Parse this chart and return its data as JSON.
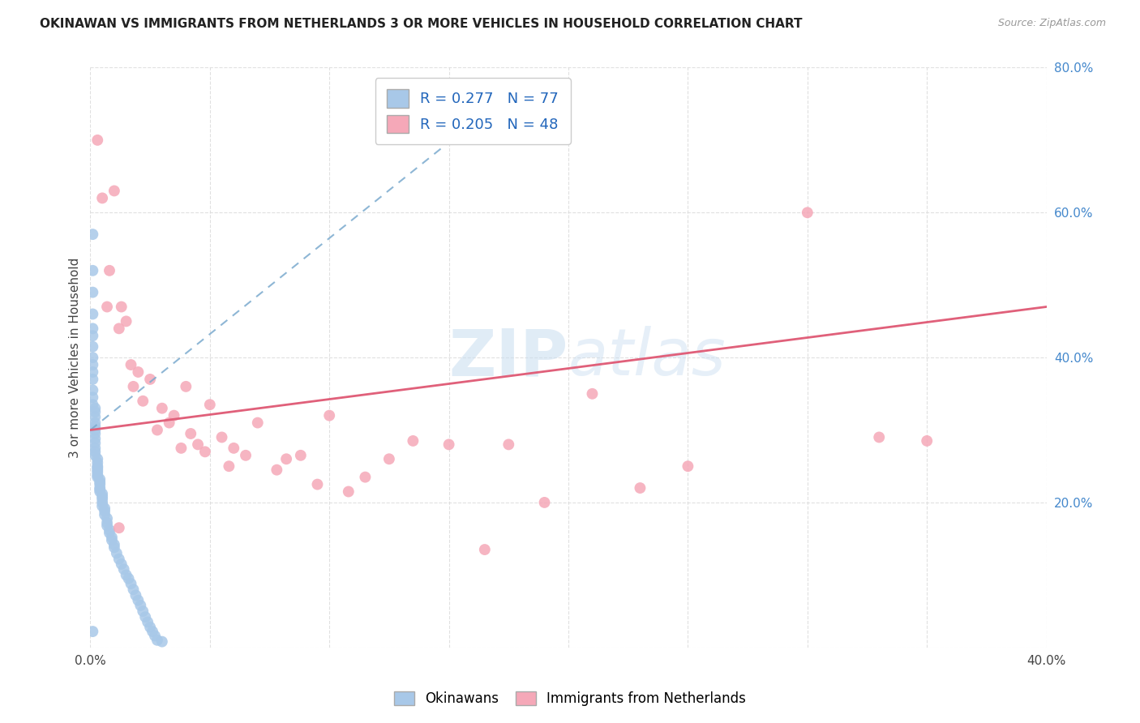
{
  "title": "OKINAWAN VS IMMIGRANTS FROM NETHERLANDS 3 OR MORE VEHICLES IN HOUSEHOLD CORRELATION CHART",
  "source": "Source: ZipAtlas.com",
  "ylabel": "3 or more Vehicles in Household",
  "xlim": [
    0.0,
    0.4
  ],
  "ylim": [
    0.0,
    0.8
  ],
  "legend_label1": "Okinawans",
  "legend_label2": "Immigrants from Netherlands",
  "r1": 0.277,
  "n1": 77,
  "r2": 0.205,
  "n2": 48,
  "color_blue": "#a8c8e8",
  "color_pink": "#f5a8b8",
  "line_color_blue": "#7aaace",
  "line_color_pink": "#e0607a",
  "watermark_zip": "ZIP",
  "watermark_atlas": "atlas",
  "blue_x": [
    0.001,
    0.001,
    0.001,
    0.001,
    0.001,
    0.001,
    0.001,
    0.001,
    0.001,
    0.001,
    0.001,
    0.001,
    0.001,
    0.001,
    0.002,
    0.002,
    0.002,
    0.002,
    0.002,
    0.002,
    0.002,
    0.002,
    0.002,
    0.002,
    0.002,
    0.002,
    0.003,
    0.003,
    0.003,
    0.003,
    0.003,
    0.003,
    0.003,
    0.003,
    0.004,
    0.004,
    0.004,
    0.004,
    0.004,
    0.004,
    0.005,
    0.005,
    0.005,
    0.005,
    0.005,
    0.006,
    0.006,
    0.006,
    0.007,
    0.007,
    0.007,
    0.008,
    0.008,
    0.009,
    0.009,
    0.01,
    0.01,
    0.011,
    0.012,
    0.013,
    0.014,
    0.015,
    0.016,
    0.017,
    0.018,
    0.019,
    0.02,
    0.021,
    0.022,
    0.023,
    0.024,
    0.025,
    0.026,
    0.027,
    0.028,
    0.03,
    0.001
  ],
  "blue_y": [
    0.57,
    0.52,
    0.49,
    0.46,
    0.44,
    0.43,
    0.415,
    0.4,
    0.39,
    0.38,
    0.37,
    0.355,
    0.345,
    0.335,
    0.33,
    0.325,
    0.318,
    0.31,
    0.305,
    0.3,
    0.295,
    0.288,
    0.282,
    0.275,
    0.27,
    0.265,
    0.26,
    0.255,
    0.25,
    0.248,
    0.245,
    0.242,
    0.238,
    0.235,
    0.232,
    0.228,
    0.225,
    0.22,
    0.218,
    0.215,
    0.212,
    0.208,
    0.205,
    0.2,
    0.195,
    0.192,
    0.188,
    0.183,
    0.178,
    0.172,
    0.168,
    0.162,
    0.158,
    0.152,
    0.148,
    0.142,
    0.138,
    0.13,
    0.122,
    0.115,
    0.108,
    0.1,
    0.095,
    0.088,
    0.08,
    0.072,
    0.065,
    0.058,
    0.05,
    0.042,
    0.035,
    0.028,
    0.022,
    0.016,
    0.01,
    0.008,
    0.022
  ],
  "pink_x": [
    0.003,
    0.005,
    0.007,
    0.008,
    0.01,
    0.012,
    0.013,
    0.015,
    0.017,
    0.018,
    0.02,
    0.022,
    0.025,
    0.028,
    0.03,
    0.033,
    0.035,
    0.038,
    0.04,
    0.042,
    0.045,
    0.048,
    0.05,
    0.055,
    0.058,
    0.06,
    0.065,
    0.07,
    0.078,
    0.082,
    0.088,
    0.095,
    0.1,
    0.108,
    0.115,
    0.125,
    0.135,
    0.15,
    0.165,
    0.175,
    0.19,
    0.21,
    0.23,
    0.25,
    0.3,
    0.33,
    0.35,
    0.012
  ],
  "pink_y": [
    0.7,
    0.62,
    0.47,
    0.52,
    0.63,
    0.44,
    0.47,
    0.45,
    0.39,
    0.36,
    0.38,
    0.34,
    0.37,
    0.3,
    0.33,
    0.31,
    0.32,
    0.275,
    0.36,
    0.295,
    0.28,
    0.27,
    0.335,
    0.29,
    0.25,
    0.275,
    0.265,
    0.31,
    0.245,
    0.26,
    0.265,
    0.225,
    0.32,
    0.215,
    0.235,
    0.26,
    0.285,
    0.28,
    0.135,
    0.28,
    0.2,
    0.35,
    0.22,
    0.25,
    0.6,
    0.29,
    0.285,
    0.165
  ],
  "blue_trend_x": [
    0.0,
    0.17
  ],
  "blue_trend_y": [
    0.3,
    0.75
  ],
  "pink_trend_x": [
    0.0,
    0.4
  ],
  "pink_trend_y": [
    0.3,
    0.47
  ]
}
